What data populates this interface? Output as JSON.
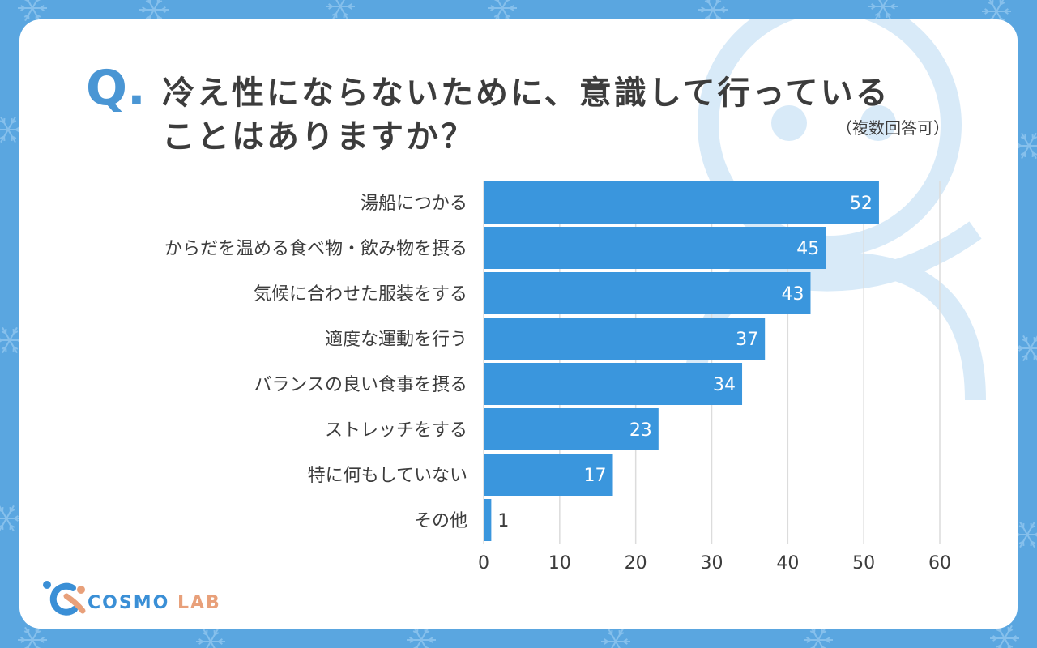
{
  "title": {
    "q_mark": "Q.",
    "line1": "冷え性にならないために、意識して行っている",
    "line2": "ことはありますか？",
    "note": "（複数回答可）"
  },
  "brand": {
    "part1": "COSMO",
    "part2": "LAB"
  },
  "colors": {
    "background": "#5aa6e0",
    "bar": "#3a96dd",
    "accent": "#4a96d4",
    "logo_orange": "#e8a07a"
  },
  "chart_data": {
    "type": "bar",
    "orientation": "horizontal",
    "categories": [
      "湯船につかる",
      "からだを温める食べ物・飲み物を摂る",
      "気候に合わせた服装をする",
      "適度な運動を行う",
      "バランスの良い食事を摂る",
      "ストレッチをする",
      "特に何もしていない",
      "その他"
    ],
    "values": [
      52,
      45,
      43,
      37,
      34,
      23,
      17,
      1
    ],
    "xlim": [
      0,
      60
    ],
    "xticks": [
      "0",
      "10",
      "20",
      "30",
      "40",
      "50",
      "60"
    ],
    "grid": true
  }
}
